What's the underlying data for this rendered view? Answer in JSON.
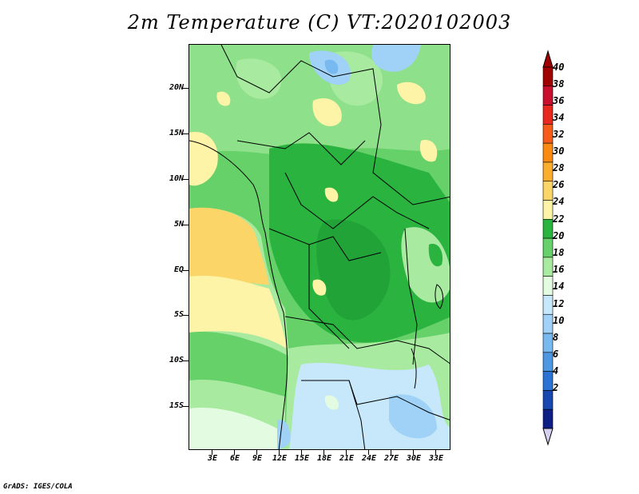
{
  "title": "2m Temperature (C) VT:2020102003",
  "lat_labels": [
    "20N",
    "15N",
    "10N",
    "5N",
    "EQ",
    "5S",
    "10S",
    "15S"
  ],
  "lon_labels": [
    "3E",
    "6E",
    "9E",
    "12E",
    "15E",
    "18E",
    "21E",
    "24E",
    "27E",
    "30E",
    "33E"
  ],
  "colorbar": {
    "levels": [
      "40",
      "38",
      "36",
      "34",
      "32",
      "30",
      "28",
      "26",
      "24",
      "22",
      "20",
      "18",
      "16",
      "14",
      "12",
      "10",
      "8",
      "6",
      "4",
      "2"
    ],
    "colors": [
      "#a00000",
      "#c8102e",
      "#e8271e",
      "#f75b1a",
      "#fb8b10",
      "#fbae2e",
      "#fcd568",
      "#fdf4a8",
      "#2ab33f",
      "#66d168",
      "#a8eaa0",
      "#e3fbe0",
      "#c7e8fb",
      "#9fd2f6",
      "#78b9ef",
      "#4d97e3",
      "#2a72d3",
      "#1747b1",
      "#0d1f85"
    ]
  },
  "footer": "GrADS: IGES/COLA"
}
